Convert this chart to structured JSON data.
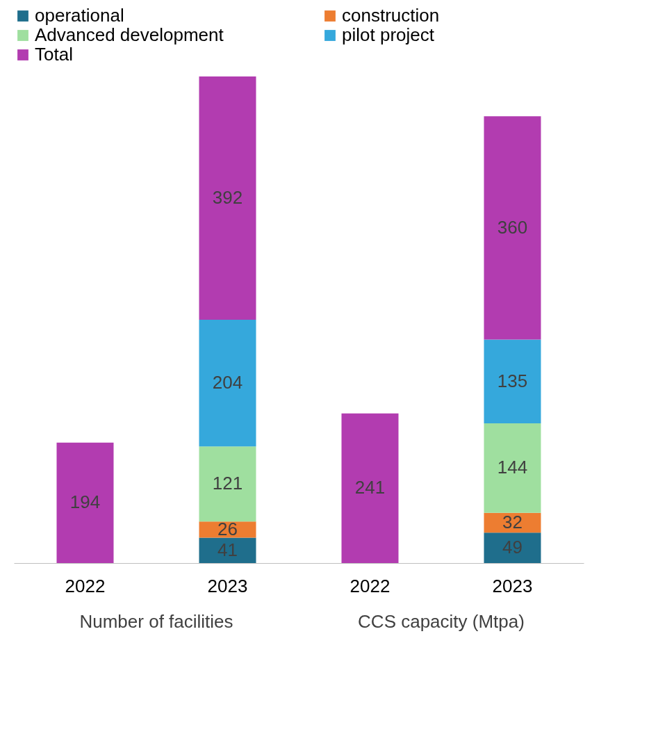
{
  "chart_data": {
    "type": "bar",
    "stacked": true,
    "data_labels": true,
    "legend": "top",
    "tick_labels": "x",
    "grid": false,
    "categories": [
      "2022",
      "2023",
      "2022",
      "2023"
    ],
    "series": [
      {
        "name": "operational",
        "color": "#1f6e8c",
        "values": [
          null,
          41,
          null,
          49
        ]
      },
      {
        "name": "construction",
        "color": "#ed7d31",
        "values": [
          null,
          26,
          null,
          32
        ]
      },
      {
        "name": "Advanced development",
        "color": "#9fdf9f",
        "values": [
          null,
          121,
          null,
          144
        ]
      },
      {
        "name": "pilot project",
        "color": "#35a8dc",
        "values": [
          null,
          204,
          null,
          135
        ]
      },
      {
        "name": "Total",
        "color": "#b23cb0",
        "values": [
          194,
          392,
          241,
          360
        ]
      }
    ],
    "annotations": [
      "Number of facilities",
      "CCS capacity (Mtpa)"
    ]
  }
}
